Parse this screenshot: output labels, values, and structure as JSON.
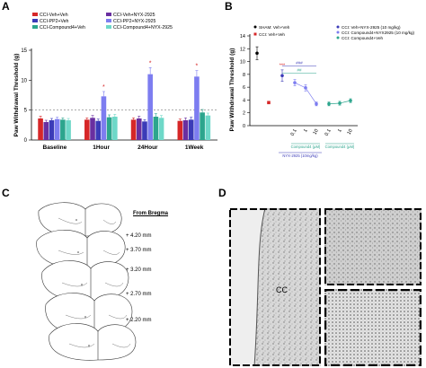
{
  "panels": {
    "a": "A",
    "b": "B",
    "c": "C",
    "d": "D"
  },
  "colors": {
    "veh": "#d62728",
    "nyx": "#6a2fa0",
    "pp2": "#3b3bb8",
    "pp2nyx": "#7d7df0",
    "c4": "#2ca58d",
    "c4nyx": "#6ed8c8",
    "sham": "#000000",
    "star": "#d62728"
  },
  "chart_data": [
    {
      "type": "bar",
      "ylabel": "Paw Withdrawal Threshold (g)",
      "ylim": [
        0,
        15
      ],
      "yticks": [
        "0",
        "5",
        "10",
        "15"
      ],
      "categories": [
        "Baseline",
        "1Hour",
        "24Hour",
        "1Week"
      ],
      "reference_line": 5,
      "series": [
        {
          "name": "CCI-Veh+Veh",
          "color_key": "veh",
          "values": [
            3.6,
            3.4,
            3.4,
            3.2
          ]
        },
        {
          "name": "CCI-Veh+NYX-2925",
          "color_key": "nyx",
          "values": [
            3.0,
            3.7,
            3.6,
            3.3
          ]
        },
        {
          "name": "CCI-PP2+Veh",
          "color_key": "pp2",
          "values": [
            3.3,
            3.2,
            3.1,
            3.4
          ]
        },
        {
          "name": "CCI-PP2+NYX-2925",
          "color_key": "pp2nyx",
          "values": [
            3.5,
            7.3,
            11.0,
            10.6
          ]
        },
        {
          "name": "CCI-Compound4+Veh",
          "color_key": "c4",
          "values": [
            3.4,
            3.8,
            3.9,
            4.6
          ]
        },
        {
          "name": "CCI-Compound4+NYX-2925",
          "color_key": "c4nyx",
          "values": [
            3.3,
            3.9,
            3.7,
            4.1
          ]
        }
      ],
      "errors": [
        [
          0.4,
          0.3,
          0.3,
          0.3
        ],
        [
          0.3,
          0.4,
          0.4,
          0.4
        ],
        [
          0.3,
          0.3,
          0.3,
          0.4
        ],
        [
          0.3,
          0.8,
          1.1,
          1.0
        ],
        [
          0.3,
          0.4,
          0.5,
          0.5
        ],
        [
          0.3,
          0.4,
          0.4,
          0.4
        ]
      ],
      "annotations": [
        "*",
        "*",
        "*"
      ]
    },
    {
      "type": "scatter",
      "ylabel": "Paw Withdrawal Threshold (g)",
      "ylim": [
        0,
        14
      ],
      "yticks": [
        "0",
        "2",
        "4",
        "6",
        "8",
        "10",
        "12",
        "14"
      ],
      "x_tick_labels": [
        "0.1",
        "1",
        "10",
        "0.1",
        "1",
        "10"
      ],
      "bracket_labels": [
        "Compound4 (μM)",
        "NYX-2925 (10mg/kg)"
      ],
      "sig_labels": [
        "***",
        "###",
        "##"
      ],
      "series": [
        {
          "name": "SHAM: Veh+Veh",
          "color_key": "sham",
          "points": [
            {
              "x": "SHAM",
              "y": 11.3,
              "err": 1.0
            }
          ]
        },
        {
          "name": "CCI: Veh+Veh",
          "color_key": "veh",
          "points": [
            {
              "x": "CCI",
              "y": 3.6,
              "err": 0.2
            }
          ]
        },
        {
          "name": "CCI: Veh+NYX-2925 (10 mg/kg)",
          "color_key": "pp2",
          "points": [
            {
              "x": "NYX",
              "y": 7.8,
              "err": 0.9
            }
          ]
        },
        {
          "name": "CCI: Compound4+NYX2925 (10 mg/kg)",
          "color_key": "pp2nyx",
          "points": [
            {
              "x": "0.1",
              "y": 6.7,
              "err": 0.5
            },
            {
              "x": "1",
              "y": 5.9,
              "err": 0.5
            },
            {
              "x": "10",
              "y": 3.4,
              "err": 0.3
            }
          ]
        },
        {
          "name": "CCI: Compound4+Veh",
          "color_key": "c4",
          "points": [
            {
              "x": "0.1",
              "y": 3.4,
              "err": 0.3
            },
            {
              "x": "1",
              "y": 3.5,
              "err": 0.3
            },
            {
              "x": "10",
              "y": 3.9,
              "err": 0.3
            }
          ]
        }
      ]
    }
  ],
  "panel_c": {
    "title": "From Bregma",
    "levels": [
      "+ 4.20 mm",
      "+ 3.70 mm",
      "+ 3.20 mm",
      "+ 2.70 mm",
      "+ 2.20 mm"
    ]
  },
  "panel_d": {
    "label": "CC"
  }
}
